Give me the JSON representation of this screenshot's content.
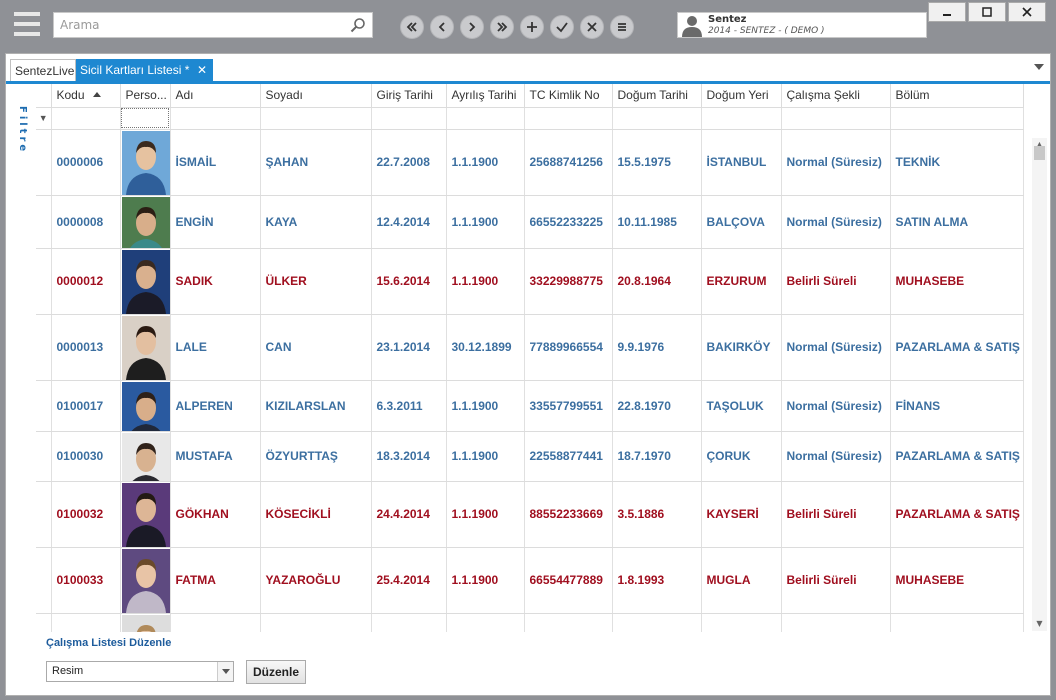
{
  "search": {
    "placeholder": "Arama"
  },
  "user": {
    "name": "Sentez",
    "subtitle": "2014 - SENTEZ - ( DEMO )"
  },
  "tabs": [
    {
      "label": "SentezLive"
    },
    {
      "label": "Sicil Kartları Listesi *"
    }
  ],
  "sidebar": {
    "filter_label": "Filtre"
  },
  "grid": {
    "columns": [
      "Kodu",
      "Perso...",
      "Adı",
      "Soyadı",
      "Giriş Tarihi",
      "Ayrılış Tarihi",
      "TC Kimlik No",
      "Doğum Tarihi",
      "Doğum Yeri",
      "Çalışma Şekli",
      "Bölüm"
    ],
    "rows": [
      {
        "kodu": "0000006",
        "adi": "İSMAİL",
        "soyadi": "ŞAHAN",
        "giris": "22.7.2008",
        "ayrilis": "1.1.1900",
        "tc": "25688741256",
        "dogum": "15.5.1975",
        "yer": "İSTANBUL",
        "sekil": "Normal (Süresiz)",
        "bolum": "TEKNİK",
        "color": "blue"
      },
      {
        "kodu": "0000008",
        "adi": "ENGİN",
        "soyadi": "KAYA",
        "giris": "12.4.2014",
        "ayrilis": "1.1.1900",
        "tc": "66552233225",
        "dogum": "10.11.1985",
        "yer": "BALÇOVA",
        "sekil": "Normal (Süresiz)",
        "bolum": "SATIN ALMA",
        "color": "blue"
      },
      {
        "kodu": "0000012",
        "adi": "SADIK",
        "soyadi": "ÜLKER",
        "giris": "15.6.2014",
        "ayrilis": "1.1.1900",
        "tc": "33229988775",
        "dogum": "20.8.1964",
        "yer": "ERZURUM",
        "sekil": "Belirli Süreli",
        "bolum": "MUHASEBE",
        "color": "red"
      },
      {
        "kodu": "0000013",
        "adi": "LALE",
        "soyadi": "CAN",
        "giris": "23.1.2014",
        "ayrilis": "30.12.1899",
        "tc": "77889966554",
        "dogum": "9.9.1976",
        "yer": "BAKIRKÖY",
        "sekil": "Normal (Süresiz)",
        "bolum": "PAZARLAMA & SATIŞ",
        "color": "blue"
      },
      {
        "kodu": "0100017",
        "adi": "ALPEREN",
        "soyadi": "KIZILARSLAN",
        "giris": "6.3.2011",
        "ayrilis": "1.1.1900",
        "tc": "33557799551",
        "dogum": "22.8.1970",
        "yer": "TAŞOLUK",
        "sekil": "Normal (Süresiz)",
        "bolum": "FİNANS",
        "color": "blue"
      },
      {
        "kodu": "0100030",
        "adi": "MUSTAFA",
        "soyadi": "ÖZYURTTAŞ",
        "giris": "18.3.2014",
        "ayrilis": "1.1.1900",
        "tc": "22558877441",
        "dogum": "18.7.1970",
        "yer": "ÇORUK",
        "sekil": "Normal (Süresiz)",
        "bolum": "PAZARLAMA & SATIŞ",
        "color": "blue"
      },
      {
        "kodu": "0100032",
        "adi": "GÖKHAN",
        "soyadi": "KÖSECİKLİ",
        "giris": "24.4.2014",
        "ayrilis": "1.1.1900",
        "tc": "88552233669",
        "dogum": "3.5.1886",
        "yer": "KAYSERİ",
        "sekil": "Belirli Süreli",
        "bolum": "PAZARLAMA & SATIŞ",
        "color": "red"
      },
      {
        "kodu": "0100033",
        "adi": "FATMA",
        "soyadi": "YAZAROĞLU",
        "giris": "25.4.2014",
        "ayrilis": "1.1.1900",
        "tc": "66554477889",
        "dogum": "1.8.1993",
        "yer": "MUGLA",
        "sekil": "Belirli Süreli",
        "bolum": "MUHASEBE",
        "color": "red"
      }
    ]
  },
  "footer": {
    "label": "Çalışma Listesi Düzenle",
    "combo_value": "Resim",
    "button_label": "Düzenle"
  },
  "colors": {
    "accent": "#1e88d1",
    "row_blue": "#3c6fa0",
    "row_red": "#a00f1f"
  }
}
